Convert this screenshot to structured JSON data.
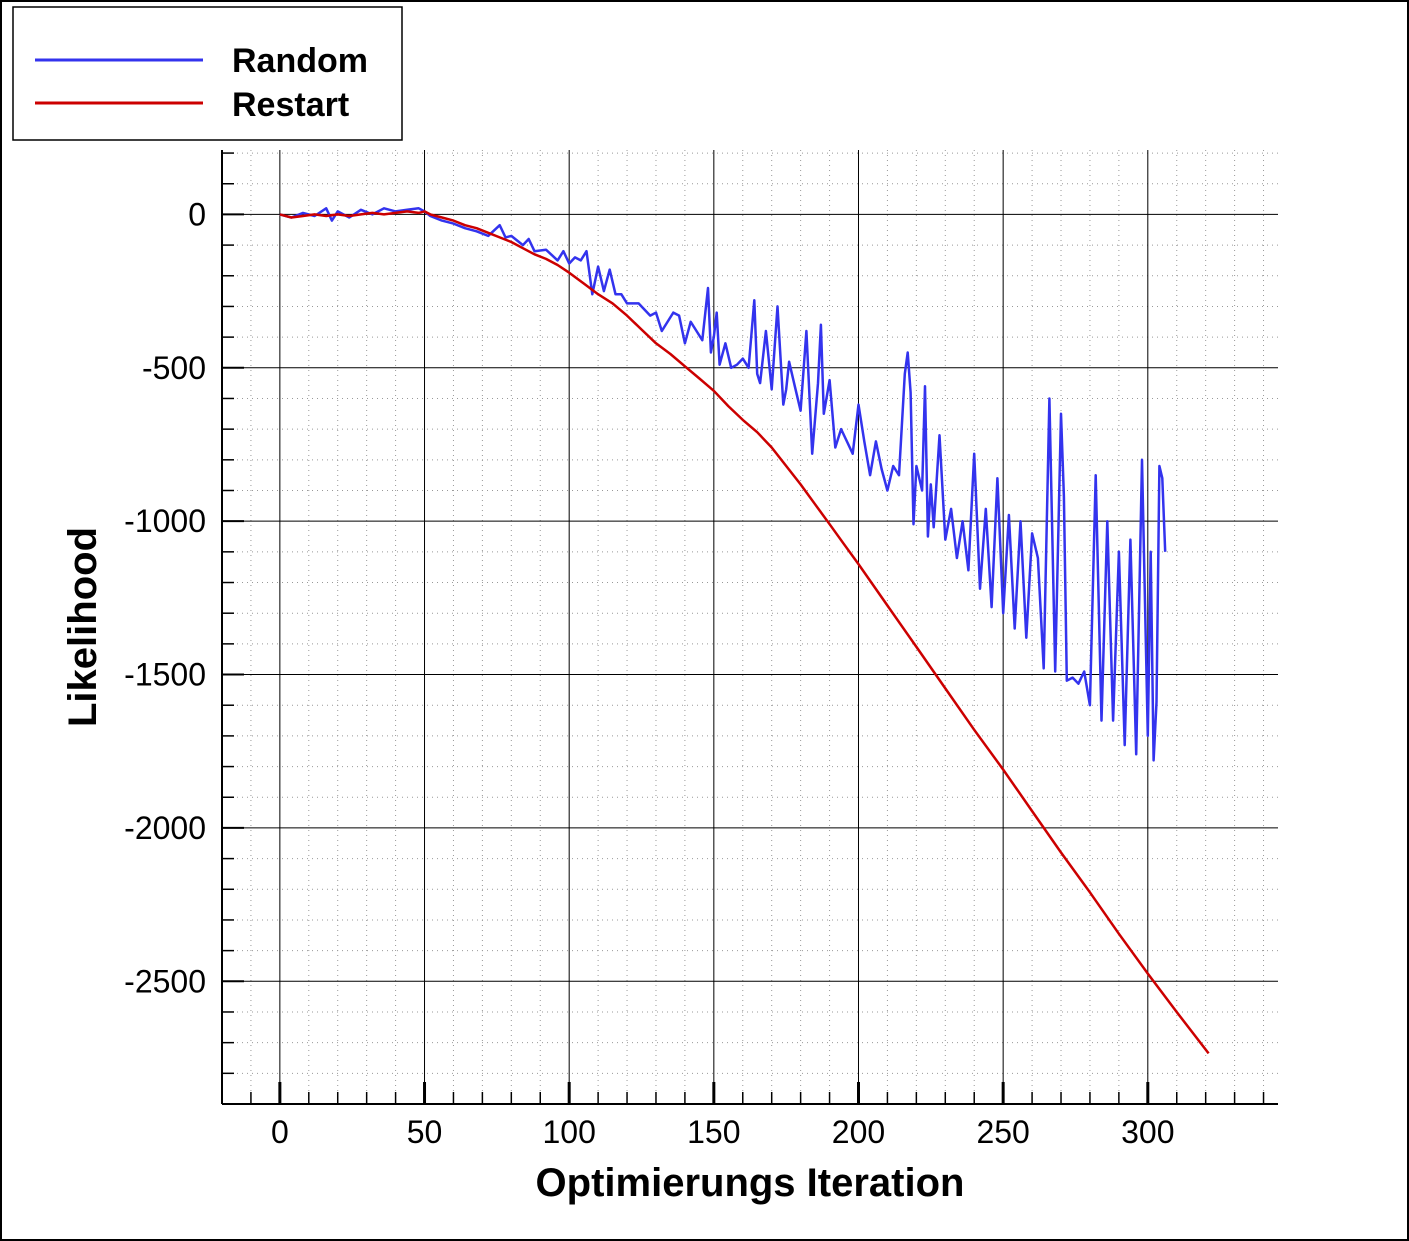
{
  "chart_data": {
    "type": "line",
    "title": "",
    "xlabel": "Optimierungs Iteration",
    "ylabel": "Likelihood",
    "xlim": [
      -20,
      345
    ],
    "ylim": [
      -2900,
      210
    ],
    "xticks": [
      0,
      50,
      100,
      150,
      200,
      250,
      300
    ],
    "xtick_labels": [
      "0",
      "50",
      "100",
      "150",
      "200",
      "250",
      "300"
    ],
    "yticks": [
      0,
      -500,
      -1000,
      -1500,
      -2000,
      -2500
    ],
    "ytick_labels": [
      "0",
      "-500",
      "-1000",
      "-1500",
      "-2000",
      "-2500"
    ],
    "grid": true,
    "legend_position": "top-left",
    "colors": {
      "Random": "#3333ee",
      "Restart": "#cc0000"
    },
    "series": [
      {
        "name": "Random",
        "color": "#3333ee",
        "x": [
          0,
          4,
          8,
          12,
          16,
          18,
          20,
          24,
          28,
          32,
          36,
          40,
          44,
          48,
          50,
          52,
          56,
          60,
          64,
          68,
          72,
          76,
          78,
          80,
          84,
          86,
          88,
          92,
          96,
          98,
          100,
          102,
          104,
          106,
          108,
          110,
          112,
          114,
          116,
          118,
          120,
          124,
          128,
          130,
          132,
          136,
          138,
          140,
          142,
          144,
          146,
          148,
          149,
          150,
          151,
          152,
          154,
          156,
          158,
          160,
          162,
          164,
          165,
          166,
          168,
          170,
          172,
          174,
          175,
          176,
          178,
          180,
          182,
          184,
          186,
          187,
          188,
          190,
          192,
          194,
          196,
          198,
          200,
          202,
          204,
          206,
          208,
          210,
          212,
          214,
          216,
          217,
          218,
          219,
          220,
          222,
          223,
          224,
          225,
          226,
          228,
          230,
          232,
          234,
          236,
          238,
          240,
          242,
          244,
          246,
          248,
          250,
          252,
          254,
          256,
          258,
          260,
          262,
          264,
          266,
          268,
          270,
          271,
          272,
          274,
          276,
          278,
          280,
          282,
          284,
          286,
          288,
          290,
          292,
          294,
          296,
          298,
          300,
          301,
          302,
          303,
          304,
          305,
          306
        ],
        "y": [
          0,
          -10,
          5,
          -5,
          20,
          -20,
          10,
          -10,
          15,
          0,
          20,
          10,
          15,
          20,
          10,
          -5,
          -20,
          -30,
          -45,
          -55,
          -70,
          -35,
          -75,
          -70,
          -100,
          -80,
          -120,
          -115,
          -150,
          -120,
          -160,
          -140,
          -150,
          -120,
          -260,
          -170,
          -250,
          -180,
          -260,
          -260,
          -290,
          -290,
          -330,
          -320,
          -380,
          -320,
          -330,
          -420,
          -350,
          -380,
          -410,
          -240,
          -450,
          -400,
          -320,
          -490,
          -420,
          -500,
          -490,
          -470,
          -500,
          -280,
          -520,
          -550,
          -380,
          -570,
          -300,
          -620,
          -570,
          -480,
          -560,
          -640,
          -380,
          -780,
          -550,
          -360,
          -650,
          -540,
          -760,
          -700,
          -740,
          -780,
          -620,
          -740,
          -850,
          -740,
          -830,
          -900,
          -820,
          -850,
          -520,
          -450,
          -580,
          -1010,
          -820,
          -900,
          -560,
          -1050,
          -880,
          -1020,
          -720,
          -1060,
          -960,
          -1120,
          -1000,
          -1160,
          -780,
          -1220,
          -960,
          -1280,
          -860,
          -1300,
          -980,
          -1350,
          -1000,
          -1380,
          -1040,
          -1120,
          -1480,
          -600,
          -1490,
          -650,
          -920,
          -1520,
          -1510,
          -1530,
          -1490,
          -1600,
          -850,
          -1650,
          -1000,
          -1650,
          -1100,
          -1730,
          -1060,
          -1760,
          -800,
          -1700,
          -1100,
          -1780,
          -1590,
          -820,
          -860,
          -1100
        ]
      },
      {
        "name": "Restart",
        "color": "#cc0000",
        "x": [
          0,
          4,
          8,
          12,
          16,
          20,
          24,
          28,
          32,
          36,
          40,
          44,
          48,
          50,
          52,
          56,
          60,
          64,
          68,
          72,
          76,
          80,
          84,
          88,
          92,
          96,
          100,
          105,
          110,
          115,
          120,
          125,
          130,
          135,
          140,
          145,
          150,
          155,
          160,
          165,
          170,
          175,
          180,
          185,
          190,
          195,
          200,
          210,
          220,
          230,
          240,
          250,
          260,
          270,
          280,
          290,
          300,
          310,
          321
        ],
        "y": [
          0,
          -10,
          -5,
          0,
          -5,
          0,
          -5,
          0,
          5,
          0,
          5,
          10,
          5,
          10,
          0,
          -10,
          -20,
          -35,
          -45,
          -60,
          -75,
          -90,
          -110,
          -130,
          -145,
          -165,
          -190,
          -225,
          -260,
          -290,
          -330,
          -375,
          -420,
          -455,
          -495,
          -535,
          -575,
          -625,
          -670,
          -710,
          -760,
          -820,
          -880,
          -945,
          -1010,
          -1075,
          -1140,
          -1275,
          -1410,
          -1545,
          -1680,
          -1810,
          -1945,
          -2080,
          -2210,
          -2345,
          -2475,
          -2600,
          -2735
        ]
      }
    ]
  }
}
